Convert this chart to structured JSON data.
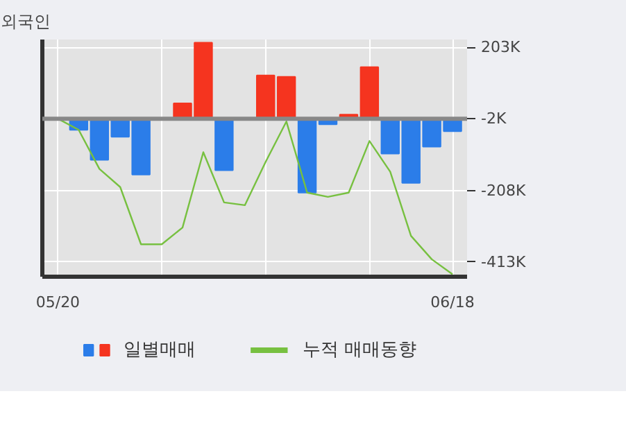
{
  "chart_data": {
    "type": "bar",
    "title": "외국인",
    "categories": [
      "05/20",
      null,
      null,
      null,
      null,
      null,
      null,
      null,
      null,
      null,
      null,
      null,
      null,
      null,
      null,
      null,
      null,
      null,
      null,
      "06/18"
    ],
    "series": [
      {
        "name": "일별매매",
        "values": [
          0,
          -34,
          -120,
          -54,
          -162,
          0,
          42,
          216,
          -150,
          0,
          122,
          118,
          -214,
          -18,
          10,
          146,
          -102,
          -186,
          -82,
          -38
        ],
        "colors": [
          "#2b7de9",
          "#2b7de9",
          "#2b7de9",
          "#2b7de9",
          "#2b7de9",
          "#2b7de9",
          "#f5341f",
          "#f5341f",
          "#2b7de9",
          "#2b7de9",
          "#f5341f",
          "#f5341f",
          "#2b7de9",
          "#2b7de9",
          "#f5341f",
          "#f5341f",
          "#2b7de9",
          "#2b7de9",
          "#2b7de9",
          "#2b7de9"
        ]
      },
      {
        "name": "누적 매매동향",
        "type": "line",
        "color": "#77c040",
        "values": [
          -2,
          -34,
          -146,
          -198,
          -362,
          -362,
          -314,
          -98,
          -242,
          -250,
          -126,
          -10,
          -214,
          -226,
          -214,
          -66,
          -154,
          -338,
          -405,
          -448
        ]
      }
    ],
    "ylim": [
      -455,
      225
    ],
    "yticks": [
      {
        "value": 203,
        "label": "203K"
      },
      {
        "value": -2,
        "label": "-2K"
      },
      {
        "value": -208,
        "label": "-208K"
      },
      {
        "value": -413,
        "label": "-413K"
      }
    ],
    "ref_lines": [
      {
        "axis": "y",
        "value": -2,
        "color": "#888888"
      }
    ],
    "grid": true,
    "legend": "bottom"
  }
}
